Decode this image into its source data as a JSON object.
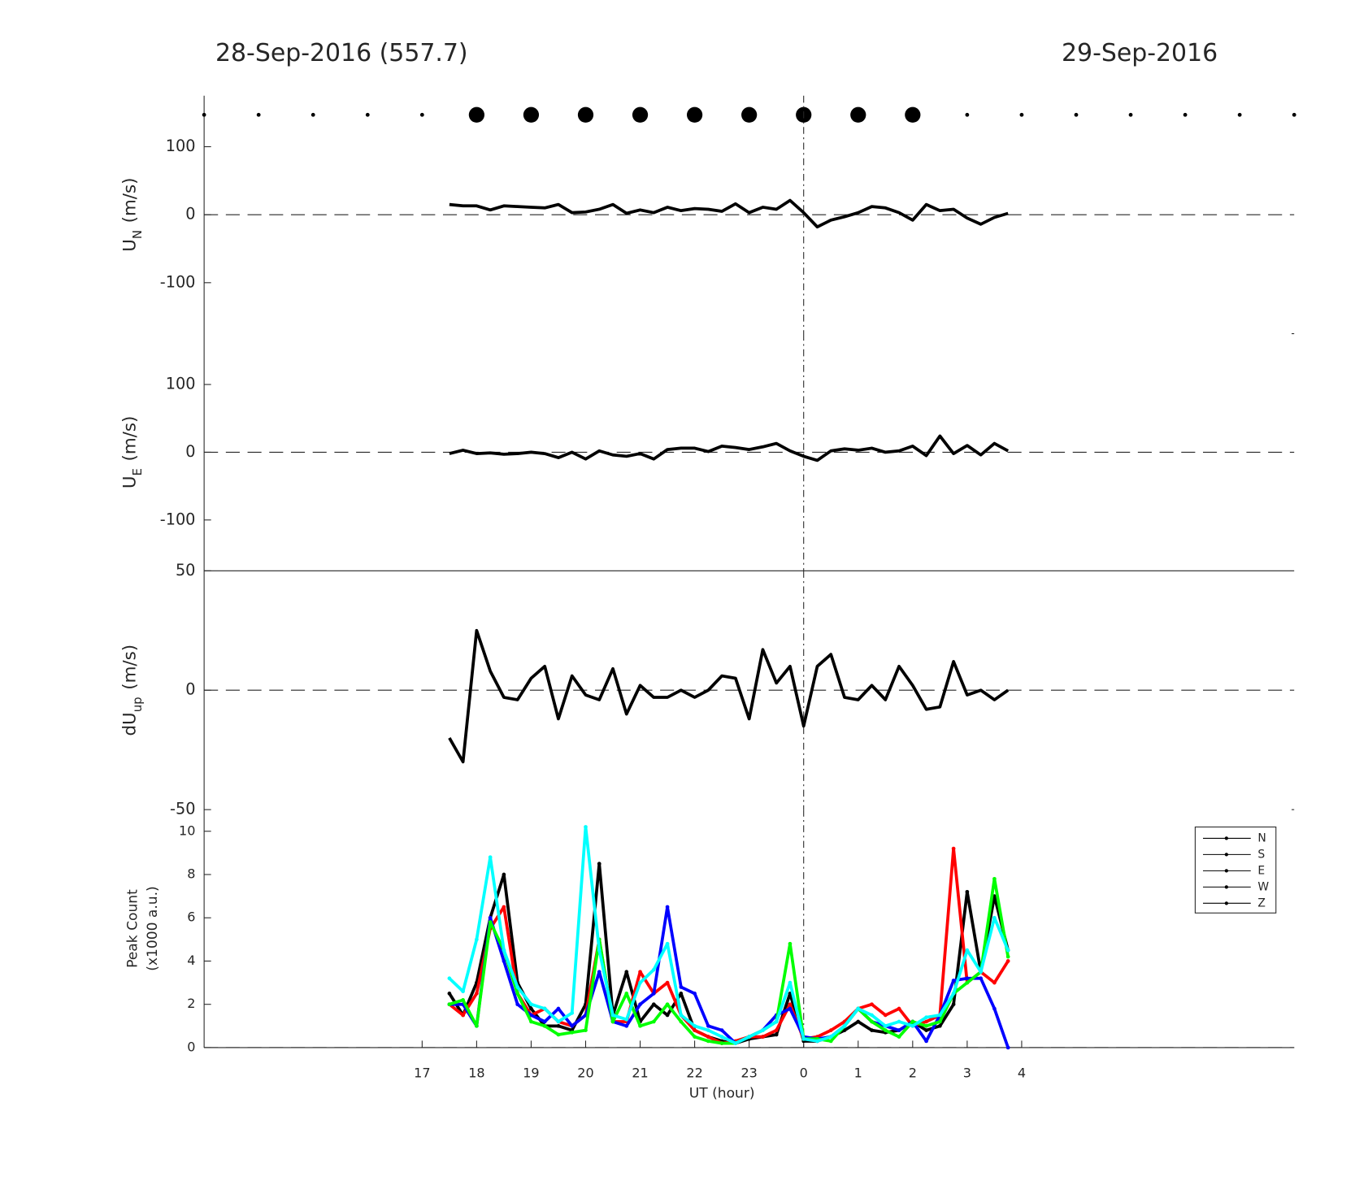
{
  "chart_data": [
    {
      "type": "dots",
      "xlim": [
        13,
        33
      ],
      "x": [
        13,
        14,
        15,
        16,
        17,
        18,
        19,
        20,
        21,
        22,
        23,
        24,
        25,
        26,
        27,
        28,
        29,
        30,
        31,
        32,
        33
      ],
      "sizes": [
        1,
        1,
        1,
        1,
        1,
        4,
        4,
        4,
        4,
        4,
        4,
        4,
        4,
        4,
        1,
        1,
        1,
        1,
        1,
        1,
        1
      ],
      "color": "#000000"
    },
    {
      "type": "line",
      "title": "28-Sep-2016 (557.7)",
      "title_right": "29-Sep-2016",
      "ylabel": {
        "main": "U",
        "sub": "N",
        "unit": "(m/s)"
      },
      "xlim": [
        13,
        33
      ],
      "ylim": [
        -175,
        175
      ],
      "yticks": [
        -100,
        0,
        100
      ],
      "hline": 0,
      "vline": 24,
      "color": "#000000",
      "x": [
        17.5,
        17.75,
        18,
        18.25,
        18.5,
        18.75,
        19,
        19.25,
        19.5,
        19.75,
        20,
        20.25,
        20.5,
        20.75,
        21,
        21.25,
        21.5,
        21.75,
        22,
        22.25,
        22.5,
        22.75,
        23,
        23.25,
        23.5,
        23.75,
        24,
        24.25,
        24.5,
        24.75,
        25,
        25.25,
        25.5,
        25.75,
        26,
        26.25,
        26.5,
        26.75,
        27,
        27.25,
        27.5,
        27.75
      ],
      "values": [
        15,
        13,
        13,
        7,
        13,
        12,
        11,
        10,
        15,
        3,
        4,
        8,
        15,
        2,
        7,
        3,
        11,
        6,
        9,
        8,
        5,
        16,
        3,
        11,
        8,
        21,
        3,
        -18,
        -8,
        -3,
        3,
        12,
        10,
        3,
        -8,
        15,
        6,
        8,
        -5,
        -14,
        -4,
        2
      ]
    },
    {
      "type": "line",
      "ylabel": {
        "main": "U",
        "sub": "E",
        "unit": "(m/s)"
      },
      "xlim": [
        13,
        33
      ],
      "ylim": [
        -175,
        175
      ],
      "yticks": [
        -100,
        0,
        100
      ],
      "hline": 0,
      "vline": 24,
      "color": "#000000",
      "x": [
        17.5,
        17.75,
        18,
        18.25,
        18.5,
        18.75,
        19,
        19.25,
        19.5,
        19.75,
        20,
        20.25,
        20.5,
        20.75,
        21,
        21.25,
        21.5,
        21.75,
        22,
        22.25,
        22.5,
        22.75,
        23,
        23.25,
        23.5,
        23.75,
        24,
        24.25,
        24.5,
        24.75,
        25,
        25.25,
        25.5,
        25.75,
        26,
        26.25,
        26.5,
        26.75,
        27,
        27.25,
        27.5,
        27.75
      ],
      "values": [
        -2,
        3,
        -2,
        -1,
        -3,
        -2,
        0,
        -2,
        -8,
        0,
        -10,
        2,
        -4,
        -6,
        -2,
        -10,
        4,
        6,
        6,
        1,
        9,
        7,
        4,
        8,
        13,
        2,
        -6,
        -12,
        2,
        5,
        3,
        6,
        0,
        2,
        9,
        -5,
        24,
        -2,
        10,
        -4,
        13,
        2
      ]
    },
    {
      "type": "line",
      "ylabel": {
        "main": "dU",
        "sub": "up",
        "unit": "(m/s)"
      },
      "xlim": [
        13,
        33
      ],
      "ylim": [
        -50,
        50
      ],
      "yticks": [
        -50,
        0,
        50
      ],
      "hline": 0,
      "vline": 24,
      "color": "#000000",
      "x": [
        17.5,
        17.75,
        18,
        18.25,
        18.5,
        18.75,
        19,
        19.25,
        19.5,
        19.75,
        20,
        20.25,
        20.5,
        20.75,
        21,
        21.25,
        21.5,
        21.75,
        22,
        22.25,
        22.5,
        22.75,
        23,
        23.25,
        23.5,
        23.75,
        24,
        24.25,
        24.5,
        24.75,
        25,
        25.25,
        25.5,
        25.75,
        26,
        26.25,
        26.5,
        26.75,
        27,
        27.25,
        27.5,
        27.75
      ],
      "values": [
        -20,
        -30,
        25,
        8,
        -3,
        -4,
        5,
        10,
        -12,
        6,
        -2,
        -4,
        9,
        -10,
        2,
        -3,
        -3,
        0,
        -3,
        0,
        6,
        5,
        -12,
        17,
        3,
        10,
        -15,
        10,
        15,
        -3,
        -4,
        2,
        -4,
        10,
        2,
        -8,
        -7,
        12,
        -2,
        0,
        -4,
        0
      ]
    },
    {
      "type": "line",
      "ylabel": [
        "Peak Count",
        "(x1000 a.u.)"
      ],
      "xlabel": "UT (hour)",
      "xlim": [
        13,
        33
      ],
      "ylim": [
        0,
        11
      ],
      "yticks": [
        0,
        2,
        4,
        6,
        8,
        10
      ],
      "vline": 24,
      "hline": 0,
      "xticks": [
        17,
        18,
        19,
        20,
        21,
        22,
        23,
        {
          "value": 24,
          "label": "0"
        },
        {
          "value": 25,
          "label": "1"
        },
        {
          "value": 26,
          "label": "2"
        },
        {
          "value": 27,
          "label": "3"
        },
        {
          "value": 28,
          "label": "4"
        }
      ],
      "legend": "northeast",
      "legend_line_color": "#000000",
      "x": [
        17.5,
        17.75,
        18,
        18.25,
        18.5,
        18.75,
        19,
        19.25,
        19.5,
        19.75,
        20,
        20.25,
        20.5,
        20.75,
        21,
        21.25,
        21.5,
        21.75,
        22,
        22.25,
        22.5,
        22.75,
        23,
        23.25,
        23.5,
        23.75,
        24,
        24.25,
        24.5,
        24.75,
        25,
        25.25,
        25.5,
        25.75,
        26,
        26.25,
        26.5,
        26.75,
        27,
        27.25,
        27.5,
        27.75
      ],
      "series": [
        {
          "name": "N",
          "color": "#000000",
          "values": [
            2.5,
            1.5,
            3,
            6,
            8,
            3,
            1.8,
            1,
            1,
            0.8,
            2,
            8.5,
            1.5,
            3.5,
            1.2,
            2,
            1.5,
            2.5,
            0.8,
            0.5,
            0.3,
            0.2,
            0.4,
            0.5,
            0.6,
            2.5,
            0.3,
            0.3,
            0.5,
            0.8,
            1.2,
            0.8,
            0.7,
            0.8,
            1.2,
            0.8,
            1,
            2,
            7.2,
            3.5,
            7,
            4.5
          ]
        },
        {
          "name": "S",
          "color": "#ff0000",
          "values": [
            2,
            1.5,
            2.5,
            5.5,
            6.5,
            2.5,
            1.5,
            1.8,
            1.2,
            1,
            1.5,
            5,
            1.2,
            1.2,
            3.5,
            2.5,
            3,
            1.5,
            0.8,
            0.5,
            0.2,
            0.3,
            0.5,
            0.5,
            0.8,
            2,
            0.4,
            0.5,
            0.8,
            1.2,
            1.8,
            2,
            1.5,
            1.8,
            1,
            1.2,
            1.5,
            9.2,
            3,
            3.5,
            3,
            4
          ]
        },
        {
          "name": "E",
          "color": "#0000ff",
          "values": [
            2,
            2,
            1,
            6,
            4,
            2,
            1.5,
            1.2,
            1.8,
            1,
            1.5,
            3.5,
            1.2,
            1,
            2,
            2.5,
            6.5,
            2.8,
            2.5,
            1,
            0.8,
            0.2,
            0.5,
            0.8,
            1.5,
            1.8,
            0.5,
            0.4,
            0.5,
            1,
            1.8,
            1.2,
            1,
            0.8,
            1.2,
            0.3,
            1.5,
            3.1,
            3.2,
            3.2,
            1.8,
            0
          ]
        },
        {
          "name": "W",
          "color": "#00ff00",
          "values": [
            2,
            2.2,
            1,
            5.8,
            4.5,
            2.5,
            1.2,
            1,
            0.6,
            0.7,
            0.8,
            5,
            1.2,
            2.5,
            1,
            1.2,
            2,
            1.2,
            0.5,
            0.3,
            0.2,
            0.2,
            0.5,
            0.8,
            1.2,
            4.8,
            0.4,
            0.4,
            0.3,
            1,
            1.8,
            1.2,
            0.8,
            0.5,
            1.2,
            1,
            1.2,
            2.5,
            3,
            3.5,
            7.8,
            4.2
          ]
        },
        {
          "name": "Z",
          "color": "#00ffff",
          "values": [
            3.2,
            2.6,
            5,
            8.8,
            4.5,
            2.8,
            2,
            1.8,
            1.2,
            1.6,
            10.2,
            4.5,
            1.5,
            1.3,
            3,
            3.6,
            4.8,
            1.5,
            1,
            0.8,
            0.5,
            0.2,
            0.5,
            0.8,
            1.2,
            3,
            0.4,
            0.3,
            0.5,
            1,
            1.8,
            1.5,
            1,
            1.2,
            1,
            1.4,
            1.5,
            2.5,
            4.5,
            3.5,
            6,
            4.5
          ]
        }
      ]
    }
  ]
}
